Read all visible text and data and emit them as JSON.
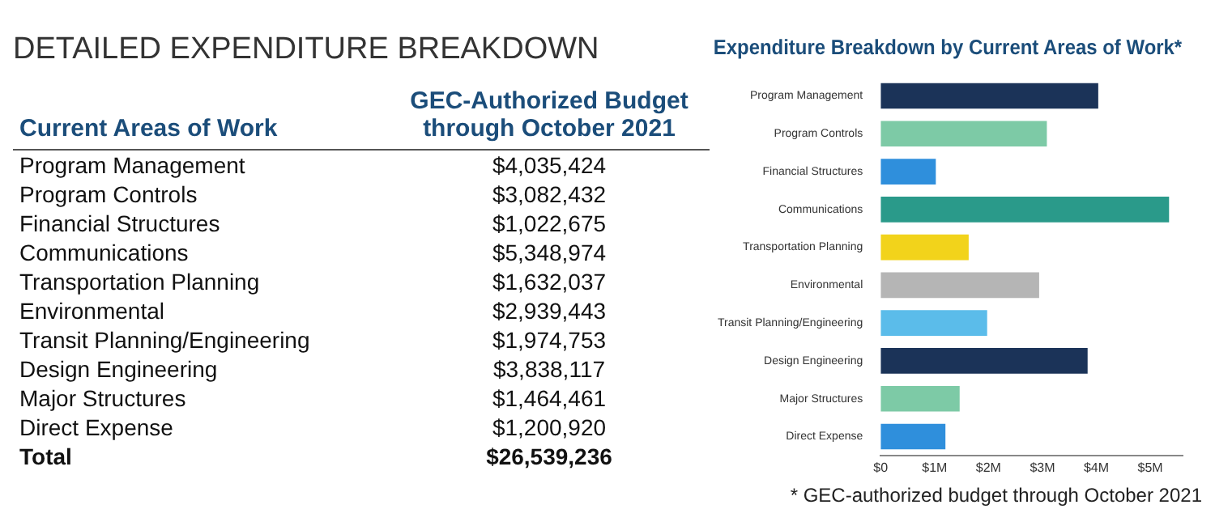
{
  "chart_data": [
    {
      "type": "other",
      "title": "DETAILED EXPENDITURE BREAKDOWN",
      "annotations": [
        "Current Areas of Work",
        "GEC-Authorized Budget through October 2021",
        "Program Management",
        "$4,035,424",
        "Program Controls",
        "$3,082,432",
        "Financial Structures",
        "$1,022,675",
        "Communications",
        "$5,348,974",
        "Transportation Planning",
        "$1,632,037",
        "Environmental",
        "$2,939,443",
        "Transit Planning/Engineering",
        "$1,974,753",
        "Design Engineering",
        "$3,838,117",
        "Major Structures",
        "$1,464,461",
        "Direct Expense",
        "$1,200,920",
        "Total",
        "$26,539,236"
      ]
    },
    {
      "type": "bar",
      "orientation": "horizontal",
      "title": "Expenditure Breakdown by Current Areas of Work*",
      "categories": [
        "Program Management",
        "Program Controls",
        "Financial Structures",
        "Communications",
        "Transportation Planning",
        "Environmental",
        "Transit Planning/Engineering",
        "Design Engineering",
        "Major Structures",
        "Direct Expense"
      ],
      "values": [
        4035424,
        3082432,
        1022675,
        5348974,
        1632037,
        2939443,
        1974753,
        3838117,
        1464461,
        1200920
      ],
      "colors": [
        "#1b3358",
        "#7dcaa6",
        "#2f8fdc",
        "#2a9a8a",
        "#f2d31b",
        "#b5b5b5",
        "#5bbcea",
        "#1b3358",
        "#7dcaa6",
        "#2f8fdc"
      ],
      "xlim": [
        0,
        5600000
      ],
      "xticks": [
        {
          "value": 0,
          "label": "$0"
        },
        {
          "value": 1000000,
          "label": "$1M"
        },
        {
          "value": 2000000,
          "label": "$2M"
        },
        {
          "value": 3000000,
          "label": "$3M"
        },
        {
          "value": 4000000,
          "label": "$4M"
        },
        {
          "value": 5000000,
          "label": "$5M"
        }
      ],
      "grid": false,
      "legend": false,
      "annotations": [
        "* GEC-authorized budget through October 2021"
      ]
    }
  ]
}
